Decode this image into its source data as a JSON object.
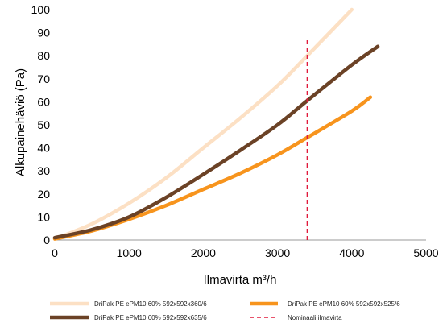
{
  "chart_data": {
    "type": "line",
    "title": "",
    "xlabel": "Ilmavirta m³/h",
    "ylabel": "Alkupainehäviö (Pa)",
    "xlim": [
      0,
      5000
    ],
    "ylim": [
      0,
      100
    ],
    "xticks": [
      0,
      1000,
      2000,
      3000,
      4000,
      5000
    ],
    "yticks": [
      0,
      10,
      20,
      30,
      40,
      50,
      60,
      70,
      80,
      90,
      100
    ],
    "grid": false,
    "legend_position": "bottom",
    "series": [
      {
        "name": "DriPak PE ePM10 60% 592x592x360/6",
        "color": "#FCE0C4",
        "style": "solid",
        "x": [
          0,
          500,
          1000,
          1500,
          2000,
          2500,
          3000,
          3400,
          4000
        ],
        "y": [
          0.5,
          7,
          16,
          27,
          40,
          53,
          67,
          80,
          100
        ]
      },
      {
        "name": "DriPak PE ePM10 60% 592x592x525/6",
        "color": "#F7941D",
        "style": "solid",
        "x": [
          0,
          500,
          1000,
          1500,
          2000,
          2500,
          3000,
          3400,
          4000,
          4250
        ],
        "y": [
          0.5,
          4,
          9,
          15,
          22,
          29,
          37,
          44.5,
          56,
          62
        ]
      },
      {
        "name": "DriPak PE ePM10 60% 592x592x635/6",
        "color": "#6B4226",
        "style": "solid",
        "x": [
          0,
          500,
          1000,
          1500,
          2000,
          2500,
          3000,
          3400,
          4000,
          4350
        ],
        "y": [
          1,
          4.5,
          10,
          18.5,
          28.5,
          39,
          50,
          60.5,
          76,
          84
        ]
      },
      {
        "name": "Nominaali ilmavirta",
        "color": "#E01A3C",
        "style": "dashed",
        "x": [
          3400,
          3400
        ],
        "y": [
          0,
          88
        ]
      }
    ]
  }
}
